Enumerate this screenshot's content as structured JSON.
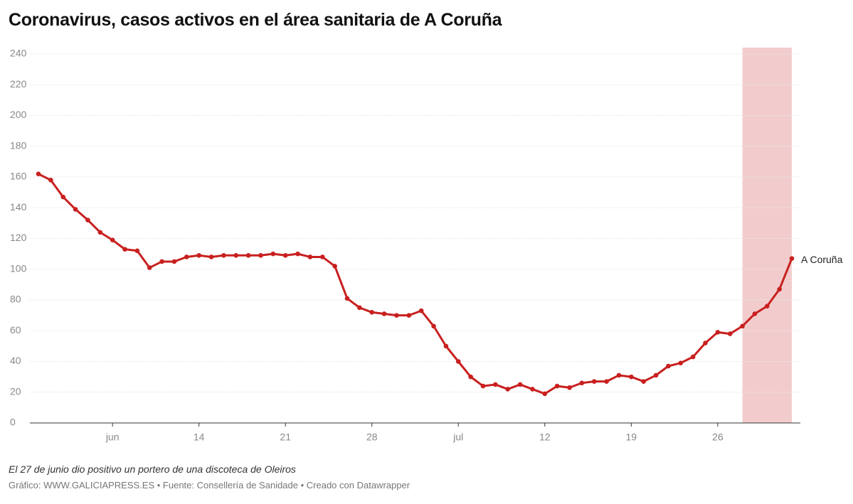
{
  "chart_data": {
    "type": "line",
    "title": "Coronavirus, casos activos en el área sanitaria de A Coruña",
    "note": "El 27 de junio dio positivo un portero de una discoteca de Oleiros",
    "source": "Gráfico: WWW.GALICIAPRESS.ES • Fuente: Consellería de Sanidade • Creado con Datawrapper",
    "x": [
      "06-01",
      "06-02",
      "06-03",
      "06-04",
      "06-05",
      "06-06",
      "06-07",
      "06-08",
      "06-09",
      "06-10",
      "06-11",
      "06-12",
      "06-13",
      "06-14",
      "06-15",
      "06-16",
      "06-17",
      "06-18",
      "06-19",
      "06-20",
      "06-21",
      "06-22",
      "06-23",
      "06-24",
      "06-25",
      "06-26",
      "06-27",
      "06-28",
      "06-29",
      "06-30",
      "07-01",
      "07-02",
      "07-03",
      "07-04",
      "07-05",
      "07-06",
      "07-07",
      "07-08",
      "07-09",
      "07-10",
      "07-11",
      "07-12",
      "07-13",
      "07-14",
      "07-15",
      "07-16",
      "07-17",
      "07-18",
      "07-19",
      "07-20",
      "07-21",
      "07-22",
      "07-23",
      "07-24",
      "07-25",
      "07-26",
      "07-27",
      "07-28",
      "07-29",
      "07-30",
      "07-31",
      "08-01"
    ],
    "series": [
      {
        "name": "A Coruña",
        "color": "#c8201f",
        "values": [
          162,
          158,
          147,
          139,
          132,
          124,
          119,
          113,
          112,
          101,
          105,
          105,
          108,
          109,
          108,
          109,
          109,
          109,
          109,
          110,
          109,
          110,
          108,
          108,
          102,
          81,
          75,
          72,
          71,
          70,
          70,
          73,
          63,
          50,
          40,
          30,
          24,
          25,
          22,
          25,
          22,
          19,
          24,
          23,
          26,
          27,
          27,
          31,
          30,
          27,
          31,
          37,
          39,
          43,
          52,
          59,
          58,
          63,
          71,
          76,
          87,
          107
        ]
      }
    ],
    "xlim": [
      "06-01",
      "08-01"
    ],
    "xticks": [
      {
        "value": "06-07",
        "label": "jun"
      },
      {
        "value": "06-14",
        "label": "14"
      },
      {
        "value": "06-21",
        "label": "21"
      },
      {
        "value": "06-28",
        "label": "28"
      },
      {
        "value": "07-05",
        "label": "jul"
      },
      {
        "value": "07-12",
        "label": "12"
      },
      {
        "value": "07-19",
        "label": "19"
      },
      {
        "value": "07-26",
        "label": "26"
      }
    ],
    "ylim": [
      0,
      240
    ],
    "yticks": [
      0,
      20,
      40,
      60,
      80,
      100,
      120,
      140,
      160,
      180,
      200,
      220,
      240
    ],
    "grid": true,
    "highlight_range": [
      "07-28",
      "08-01"
    ],
    "highlight_color": "#f2cccd"
  }
}
